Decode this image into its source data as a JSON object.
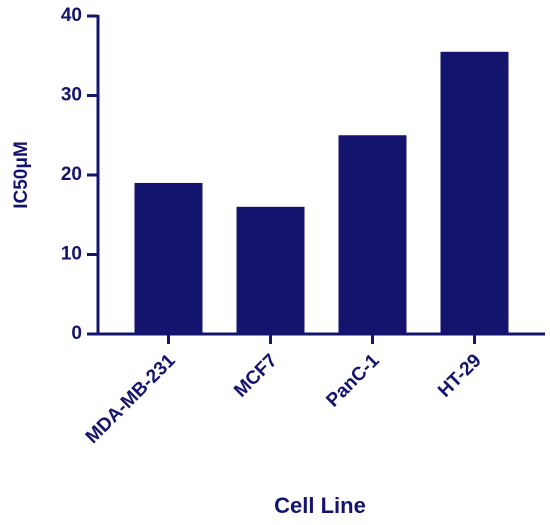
{
  "chart_data": {
    "type": "bar",
    "categories": [
      "MDA-MB-231",
      "MCF7",
      "PanC-1",
      "HT-29"
    ],
    "values": [
      19,
      16,
      25,
      35.5
    ],
    "color": "#14146e",
    "y_label": "IC50μM",
    "x_label": "Cell Line",
    "ylim": [
      0,
      40
    ],
    "yticks": [
      0,
      10,
      20,
      30,
      40
    ]
  }
}
